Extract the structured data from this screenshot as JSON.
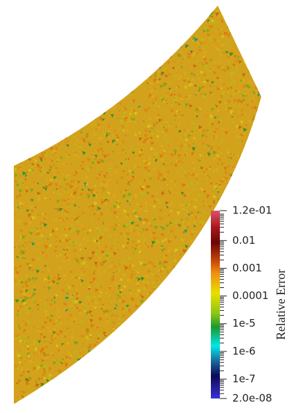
{
  "chart_data": {
    "type": "colormap",
    "colorbar_label": "Relative Error",
    "log_scale": true,
    "ylim": [
      2e-08,
      0.12
    ],
    "yticks": [
      {
        "value": 0.12,
        "label": "1.2e-01"
      },
      0.01,
      0.001,
      0.0001,
      {
        "value": 1e-05,
        "label": "1e-5"
      },
      {
        "value": 1e-06,
        "label": "1e-6"
      },
      {
        "value": 1e-07,
        "label": "1e-7"
      },
      {
        "value": 2e-08,
        "label": "2.0e-08"
      }
    ]
  }
}
